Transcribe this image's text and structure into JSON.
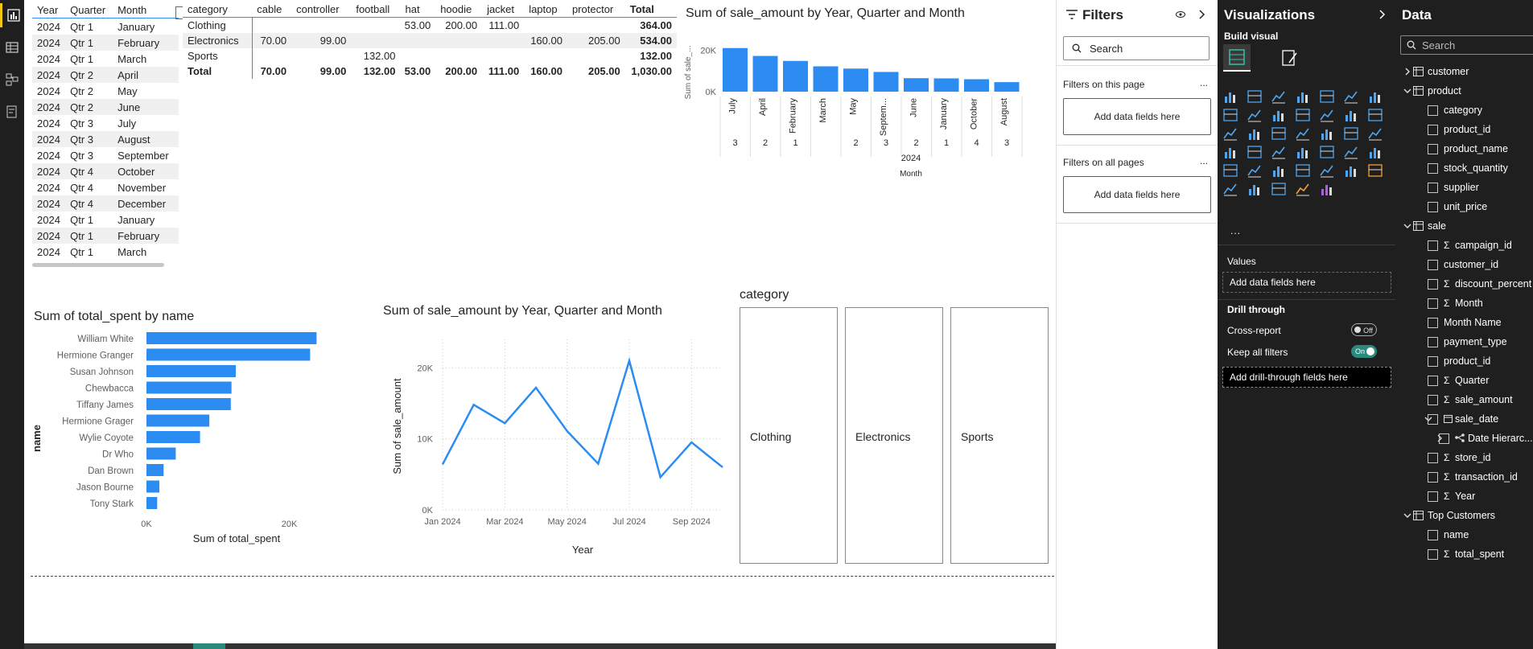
{
  "date_table": {
    "headers": [
      "Year",
      "Quarter",
      "Month"
    ],
    "rows": [
      [
        "2024",
        "Qtr 1",
        "January"
      ],
      [
        "2024",
        "Qtr 1",
        "February"
      ],
      [
        "2024",
        "Qtr 1",
        "March"
      ],
      [
        "2024",
        "Qtr 2",
        "April"
      ],
      [
        "2024",
        "Qtr 2",
        "May"
      ],
      [
        "2024",
        "Qtr 2",
        "June"
      ],
      [
        "2024",
        "Qtr 3",
        "July"
      ],
      [
        "2024",
        "Qtr 3",
        "August"
      ],
      [
        "2024",
        "Qtr 3",
        "September"
      ],
      [
        "2024",
        "Qtr 4",
        "October"
      ],
      [
        "2024",
        "Qtr 4",
        "November"
      ],
      [
        "2024",
        "Qtr 4",
        "December"
      ],
      [
        "2024",
        "Qtr 1",
        "January"
      ],
      [
        "2024",
        "Qtr 1",
        "February"
      ],
      [
        "2024",
        "Qtr 1",
        "March"
      ]
    ]
  },
  "matrix": {
    "headers": [
      "category",
      "cable",
      "controller",
      "football",
      "hat",
      "hoodie",
      "jacket",
      "laptop",
      "protector",
      "Total"
    ],
    "rows": [
      [
        "Clothing",
        "",
        "",
        "",
        "53.00",
        "200.00",
        "111.00",
        "",
        "",
        "364.00"
      ],
      [
        "Electronics",
        "70.00",
        "99.00",
        "",
        "",
        "",
        "",
        "160.00",
        "205.00",
        "534.00"
      ],
      [
        "Sports",
        "",
        "",
        "132.00",
        "",
        "",
        "",
        "",
        "",
        "132.00"
      ],
      [
        "Total",
        "70.00",
        "99.00",
        "132.00",
        "53.00",
        "200.00",
        "111.00",
        "160.00",
        "205.00",
        "1,030.00"
      ]
    ]
  },
  "chart_data": [
    {
      "type": "bar",
      "title": "Sum of sale_amount by Year, Quarter and Month",
      "ylabel": "Sum of sale_...",
      "xlabel": "Month",
      "year_label": "2024",
      "categories": [
        "July",
        "April",
        "February",
        "March",
        "May",
        "Septem...",
        "June",
        "January",
        "October",
        "August"
      ],
      "quarters": [
        "3",
        "2",
        "1",
        "",
        "2",
        "3",
        "2",
        "1",
        "4",
        "3"
      ],
      "values": [
        21000,
        17200,
        14800,
        12200,
        11100,
        9500,
        6500,
        6400,
        6000,
        4600
      ],
      "yticks": [
        "20K",
        "0K"
      ],
      "ylim": [
        0,
        24000
      ],
      "color": "#2c8cf2"
    },
    {
      "type": "bar",
      "orientation": "horizontal",
      "title": "Sum of total_spent by name",
      "ylabel": "name",
      "xlabel": "Sum of total_spent",
      "categories": [
        "William White",
        "Hermione Granger",
        "Susan Johnson",
        "Chewbacca",
        "Tiffany James",
        "Hermione Grager",
        "Wylie Coyote",
        "Dr Who",
        "Dan Brown",
        "Jason Bourne",
        "Tony Stark"
      ],
      "values": [
        23800,
        22900,
        12500,
        11900,
        11800,
        8800,
        7500,
        4100,
        2400,
        1800,
        1500
      ],
      "xticks": [
        "0K",
        "20K"
      ],
      "xlim": [
        0,
        25000
      ],
      "color": "#2c8cf2"
    },
    {
      "type": "line",
      "title": "Sum of sale_amount by Year, Quarter and Month",
      "ylabel": "Sum of sale_amount",
      "xlabel": "Year",
      "x": [
        "Jan 2024",
        "Feb 2024",
        "Mar 2024",
        "Apr 2024",
        "May 2024",
        "Jun 2024",
        "Jul 2024",
        "Aug 2024",
        "Sep 2024",
        "Oct 2024"
      ],
      "values": [
        6400,
        14800,
        12200,
        17200,
        11100,
        6500,
        21000,
        4600,
        9500,
        6000
      ],
      "xticks": [
        "Jan 2024",
        "Mar 2024",
        "May 2024",
        "Jul 2024",
        "Sep 2024"
      ],
      "yticks": [
        "20K",
        "10K",
        "0K"
      ],
      "ylim": [
        0,
        24000
      ],
      "color": "#2c8cf2"
    }
  ],
  "slicer": {
    "title": "category",
    "cards": [
      "Clothing",
      "Electronics",
      "Sports"
    ]
  },
  "filters_pane": {
    "title": "Filters",
    "search_placeholder": "Search",
    "on_this_page": "Filters on this page",
    "on_all_pages": "Filters on all pages",
    "add_fields": "Add data fields here",
    "more": "..."
  },
  "viz_pane": {
    "title": "Visualizations",
    "build_visual": "Build visual",
    "more": "...",
    "values_label": "Values",
    "add_fields": "Add data fields here",
    "drill_through": "Drill through",
    "cross_report": "Cross-report",
    "cross_report_state": "Off",
    "keep_filters": "Keep all filters",
    "keep_filters_state": "On",
    "add_drill": "Add drill-through fields here"
  },
  "data_pane": {
    "title": "Data",
    "search_placeholder": "Search",
    "items": [
      {
        "label": "customer",
        "level": 0,
        "kind": "table",
        "state": "collapsed"
      },
      {
        "label": "product",
        "level": 0,
        "kind": "table",
        "state": "expanded"
      },
      {
        "label": "category",
        "level": 1,
        "kind": "field"
      },
      {
        "label": "product_id",
        "level": 1,
        "kind": "field"
      },
      {
        "label": "product_name",
        "level": 1,
        "kind": "field"
      },
      {
        "label": "stock_quantity",
        "level": 1,
        "kind": "field"
      },
      {
        "label": "supplier",
        "level": 1,
        "kind": "field"
      },
      {
        "label": "unit_price",
        "level": 1,
        "kind": "field"
      },
      {
        "label": "sale",
        "level": 0,
        "kind": "table",
        "state": "expanded"
      },
      {
        "label": "campaign_id",
        "level": 1,
        "kind": "sum"
      },
      {
        "label": "customer_id",
        "level": 1,
        "kind": "field"
      },
      {
        "label": "discount_percent",
        "level": 1,
        "kind": "sum"
      },
      {
        "label": "Month",
        "level": 1,
        "kind": "sum"
      },
      {
        "label": "Month Name",
        "level": 1,
        "kind": "field"
      },
      {
        "label": "payment_type",
        "level": 1,
        "kind": "field"
      },
      {
        "label": "product_id",
        "level": 1,
        "kind": "field"
      },
      {
        "label": "Quarter",
        "level": 1,
        "kind": "sum"
      },
      {
        "label": "sale_amount",
        "level": 1,
        "kind": "sum"
      },
      {
        "label": "sale_date",
        "level": 1,
        "kind": "date",
        "state": "expanded"
      },
      {
        "label": "Date Hierarc...",
        "level": 2,
        "kind": "hier",
        "state": "collapsed"
      },
      {
        "label": "store_id",
        "level": 1,
        "kind": "sum"
      },
      {
        "label": "transaction_id",
        "level": 1,
        "kind": "sum"
      },
      {
        "label": "Year",
        "level": 1,
        "kind": "sum"
      },
      {
        "label": "Top Customers",
        "level": 0,
        "kind": "table",
        "state": "expanded"
      },
      {
        "label": "name",
        "level": 1,
        "kind": "field"
      },
      {
        "label": "total_spent",
        "level": 1,
        "kind": "sum"
      }
    ]
  }
}
